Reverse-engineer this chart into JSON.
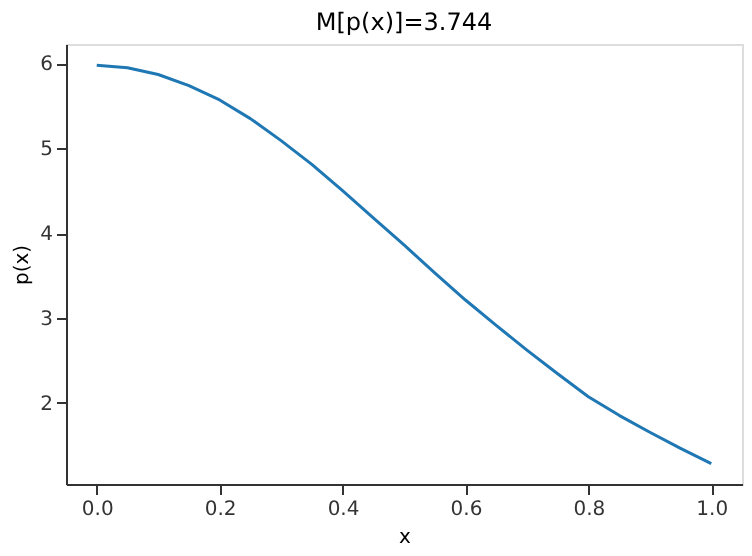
{
  "chart_data": {
    "type": "line",
    "title": "M[p(x)]=3.744",
    "xlabel": "x",
    "ylabel": "p(x)",
    "x": [
      0,
      0.05,
      0.1,
      0.15,
      0.2,
      0.25,
      0.3,
      0.35,
      0.4,
      0.45,
      0.5,
      0.55,
      0.6,
      0.65,
      0.7,
      0.75,
      0.8,
      0.85,
      0.9,
      0.95,
      1.0
    ],
    "series": [
      {
        "color": "#1f77b4",
        "values": [
          5.98,
          5.95,
          5.87,
          5.74,
          5.57,
          5.35,
          5.09,
          4.81,
          4.5,
          4.18,
          3.86,
          3.53,
          3.21,
          2.91,
          2.62,
          2.34,
          2.07,
          1.85,
          1.65,
          1.46,
          1.28
        ]
      }
    ],
    "xlim": [
      -0.05,
      1.05
    ],
    "ylim": [
      1.04,
      6.23
    ],
    "xticks": [
      {
        "value": 0,
        "label": "0.0"
      },
      {
        "value": 0.2,
        "label": "0.2"
      },
      {
        "value": 0.4,
        "label": "0.4"
      },
      {
        "value": 0.6,
        "label": "0.6"
      },
      {
        "value": 0.8,
        "label": "0.8"
      },
      {
        "value": 1.0,
        "label": "1.0"
      }
    ],
    "yticks": [
      2,
      3,
      4,
      5,
      6
    ],
    "grid": false
  }
}
